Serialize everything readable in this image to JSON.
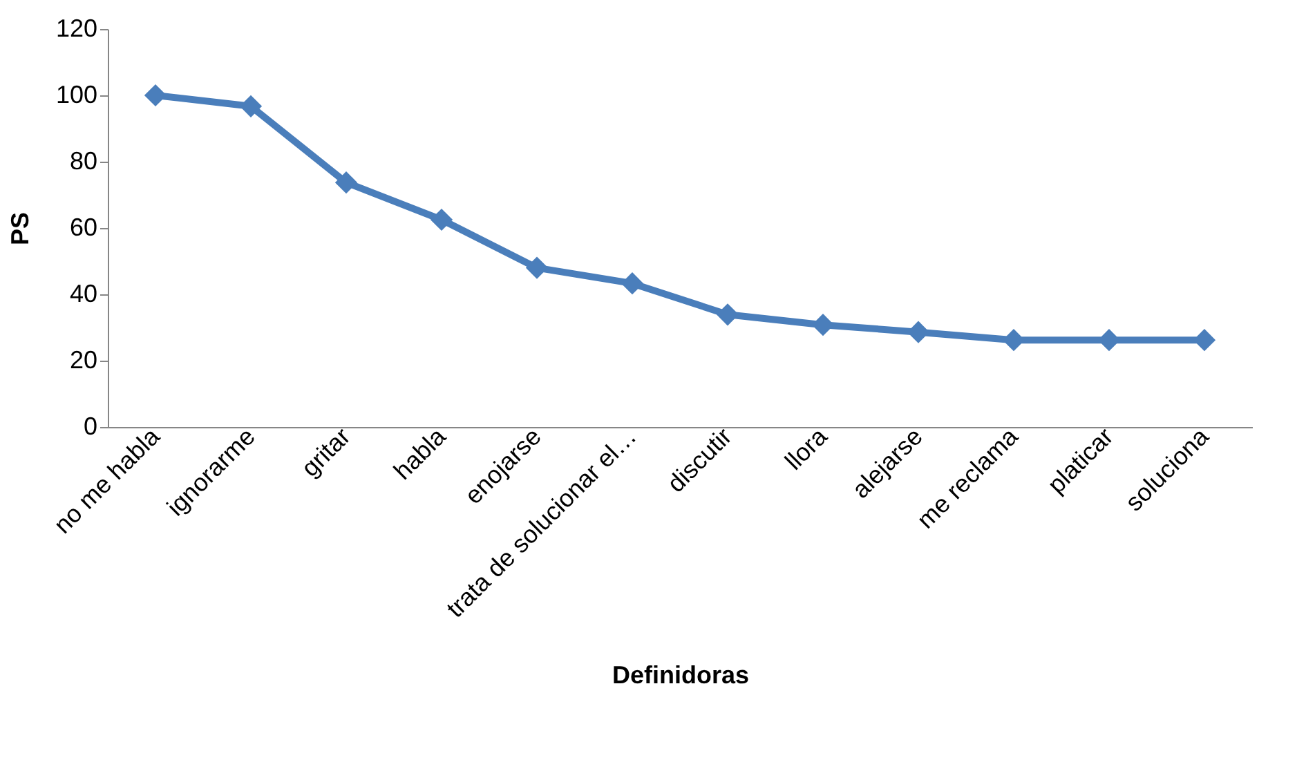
{
  "chart_data": {
    "type": "line",
    "xlabel": "Definidoras",
    "ylabel": "PS",
    "categories": [
      "no me habla",
      "ignorarme",
      "gritar",
      "habla",
      "enojarse",
      "trata de solucionar el…",
      "discutir",
      "llora",
      "alejarse",
      "me reclama",
      "platicar",
      "soluciona"
    ],
    "series": [
      {
        "color": "#4a7ebb",
        "values": [
          100,
          96.7,
          73.7,
          62.5,
          48,
          43.3,
          33.9,
          30.8,
          28.6,
          26.2,
          26.2,
          26.2
        ]
      }
    ],
    "ylim": [
      0,
      120
    ],
    "yticks": [
      0,
      20,
      40,
      60,
      80,
      100,
      120
    ],
    "grid": false,
    "legend": false,
    "marker": "diamond",
    "line_style": "solid"
  }
}
